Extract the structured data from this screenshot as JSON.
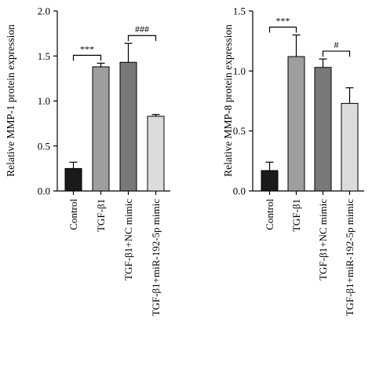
{
  "chart_data": [
    {
      "type": "bar",
      "ylabel": "Relative MMP-1 protein expression",
      "ylim": [
        0,
        2.0
      ],
      "yticks": [
        "0.0",
        "0.5",
        "1.0",
        "1.5",
        "2.0"
      ],
      "categories": [
        "Control",
        "TGF-β1",
        "TGF-β1+NC mimic",
        "TGF-β1+miR-192-5p mimic"
      ],
      "values": [
        0.25,
        1.38,
        1.43,
        0.83
      ],
      "errors": [
        0.07,
        0.04,
        0.21,
        0.02
      ],
      "bar_colors": [
        "#1a1a1a",
        "#9e9e9e",
        "#787878",
        "#dcdcdc"
      ],
      "annotations": [
        {
          "text": "***",
          "from": 0,
          "to": 1
        },
        {
          "text": "###",
          "from": 2,
          "to": 3
        }
      ]
    },
    {
      "type": "bar",
      "ylabel": "Relative MMP-8 protein expression",
      "ylim": [
        0,
        1.5
      ],
      "yticks": [
        "0.0",
        "0.5",
        "1.0",
        "1.5"
      ],
      "categories": [
        "Control",
        "TGF-β1",
        "TGF-β1+NC mimic",
        "TGF-β1+miR-192-5p mimic"
      ],
      "values": [
        0.17,
        1.12,
        1.03,
        0.73
      ],
      "errors": [
        0.07,
        0.18,
        0.07,
        0.13
      ],
      "bar_colors": [
        "#1a1a1a",
        "#9e9e9e",
        "#787878",
        "#dcdcdc"
      ],
      "annotations": [
        {
          "text": "***",
          "from": 0,
          "to": 1
        },
        {
          "text": "#",
          "from": 2,
          "to": 3
        }
      ]
    }
  ]
}
